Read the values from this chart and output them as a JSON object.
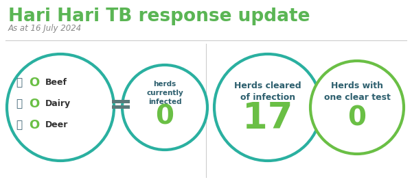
{
  "title": "Hari Hari TB response update",
  "subtitle": "As at 16 July 2024",
  "title_color": "#5cb85c",
  "subtitle_color": "#888888",
  "background_color": "#ffffff",
  "divider_color": "#cccccc",
  "teal_color": "#2ab0a0",
  "green_color": "#6abf45",
  "label_color": "#2d5f6e",
  "equals_color": "#5a7a7a",
  "animals": [
    "Beef",
    "Dairy",
    "Deer"
  ],
  "infected_label": "herds\ncurrently\ninfected",
  "infected_value": "0",
  "cleared_label": "Herds cleared\nof infection",
  "cleared_value": "17",
  "one_clear_label": "Herds with\none clear test",
  "one_clear_value": "0"
}
